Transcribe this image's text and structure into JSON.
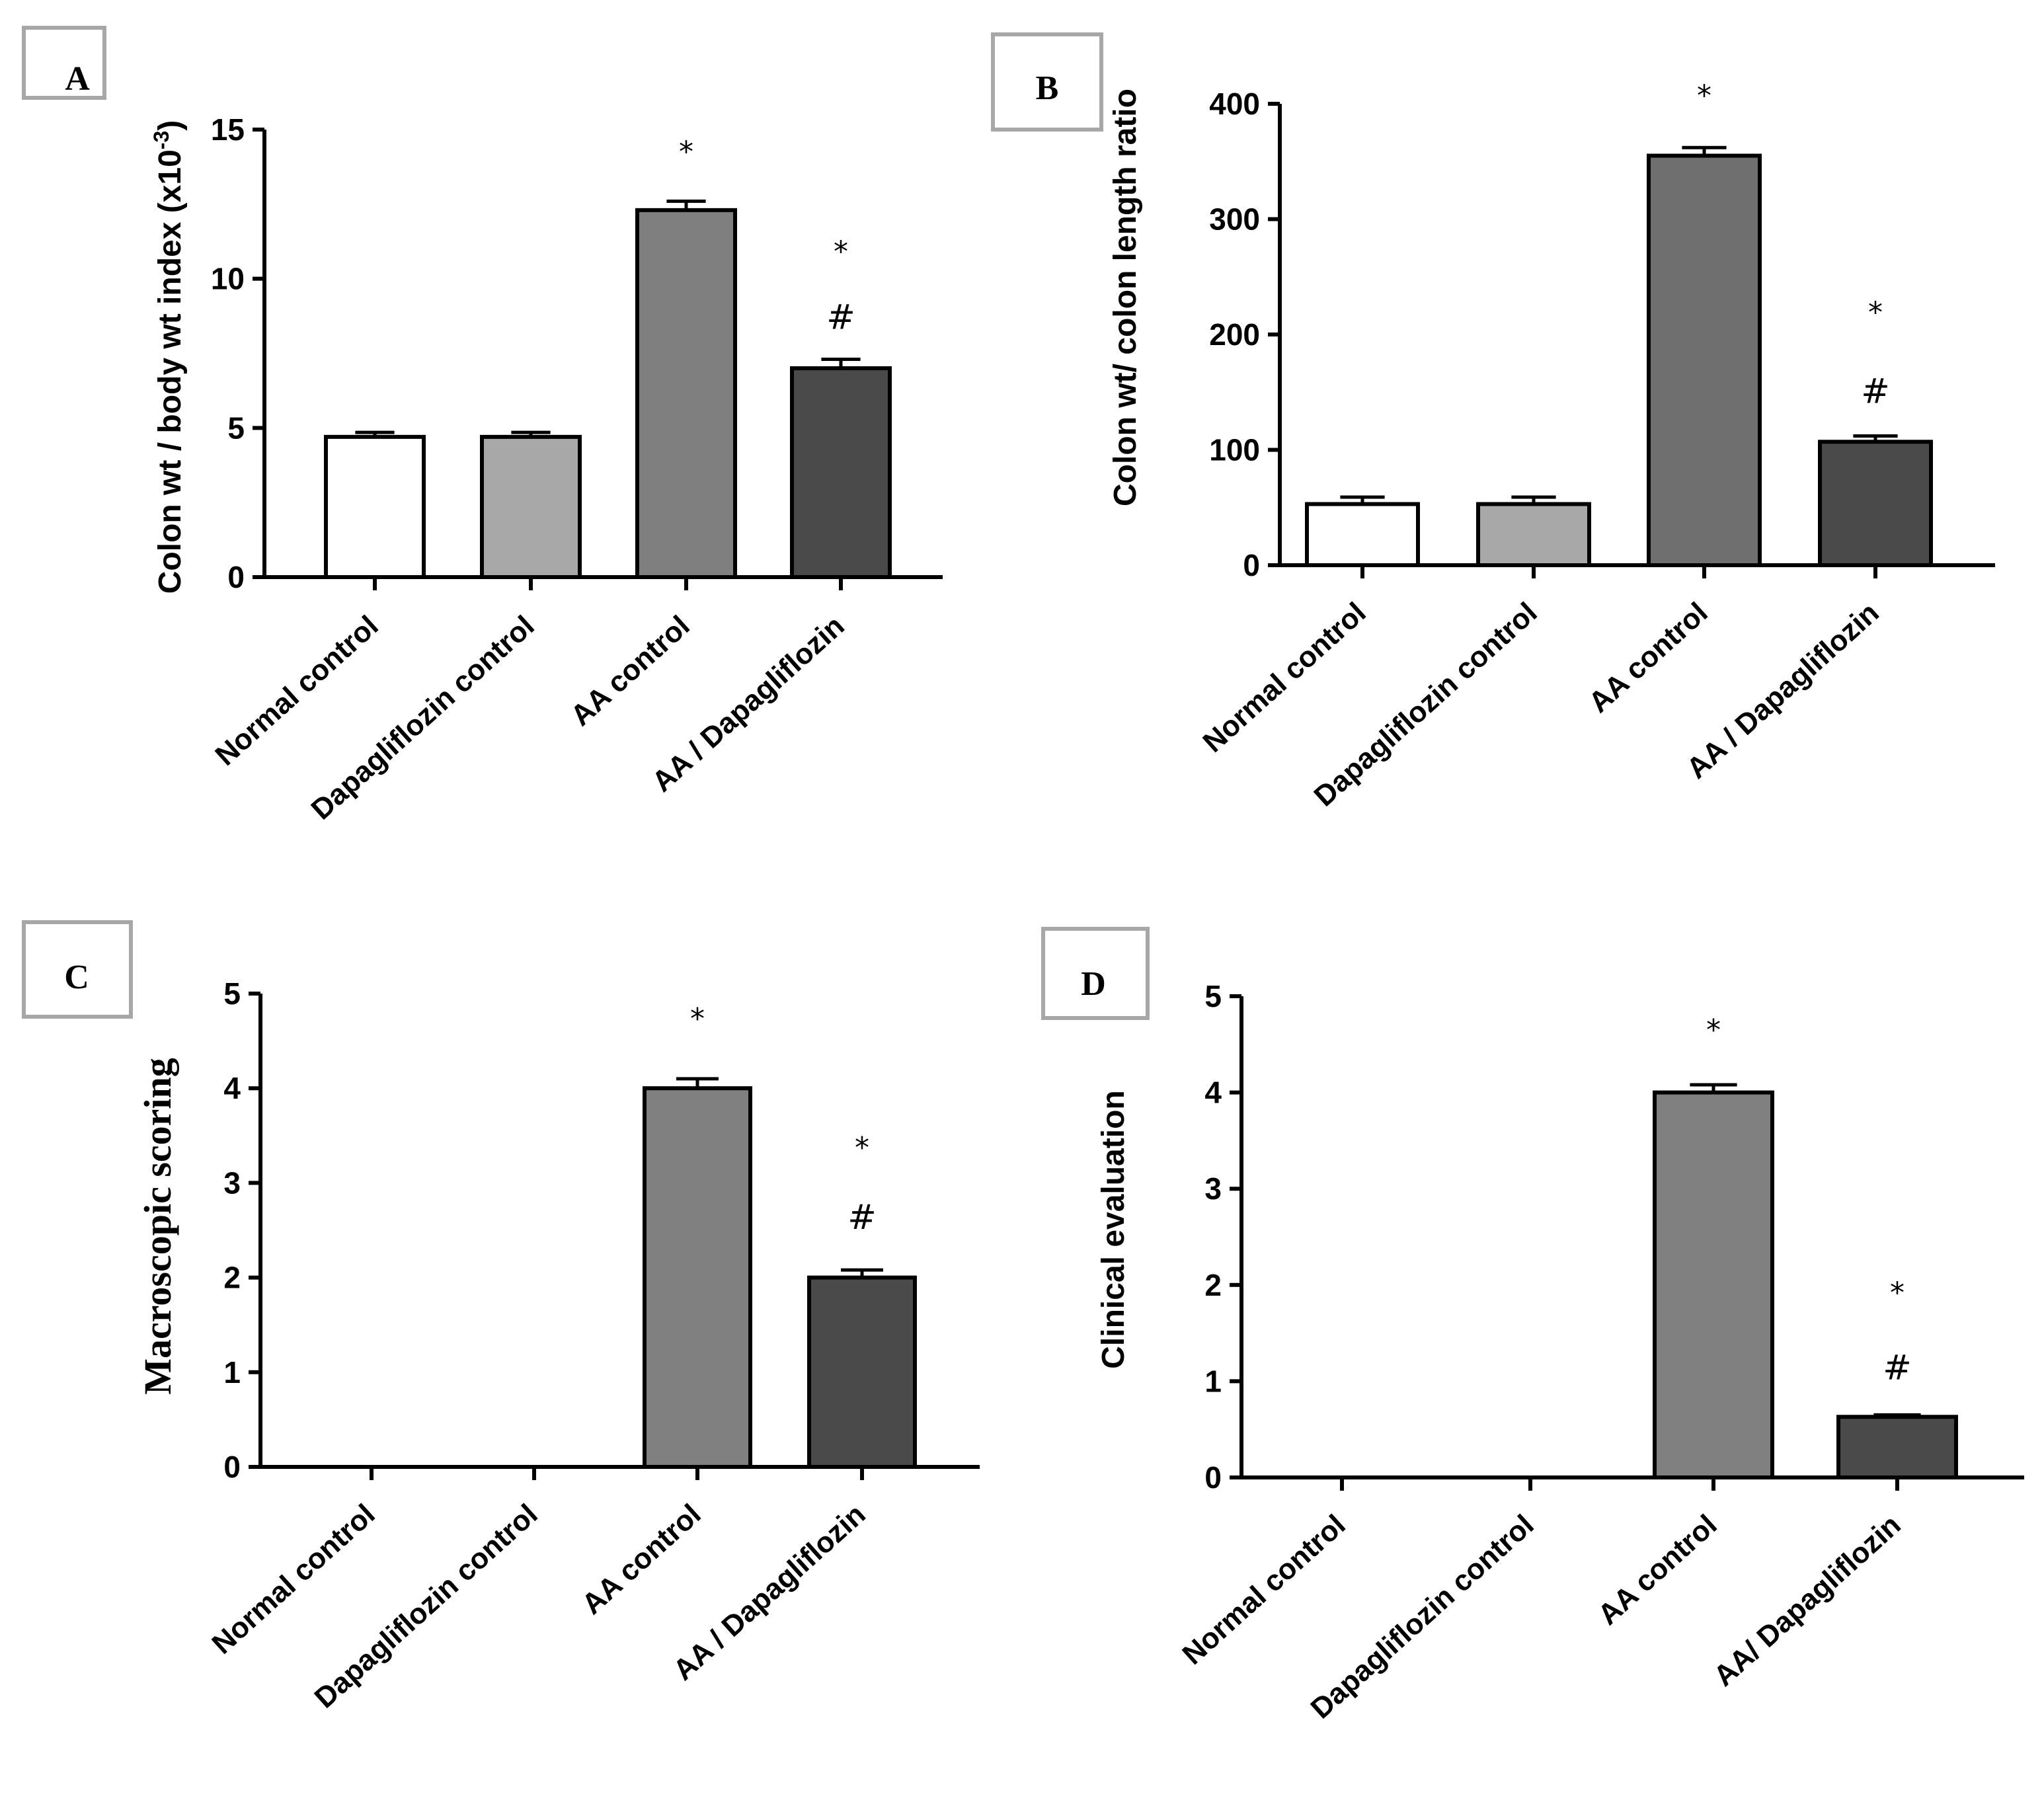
{
  "chart_data": [
    {
      "panel": "A",
      "type": "bar",
      "categories": [
        "Normal control",
        "Dapagliflozin control",
        "AA control",
        "AA / Dapagliflozin"
      ],
      "values": [
        4.7,
        4.7,
        12.3,
        7.0
      ],
      "errors": [
        0.15,
        0.15,
        0.3,
        0.3
      ],
      "annotations": [
        [],
        [],
        [
          "*"
        ],
        [
          "*",
          "#"
        ]
      ],
      "ylabel": "Colon wt / body wt index (x10",
      "ylabel_sup": "-3",
      "ylabel_close": ")",
      "ylim": [
        0,
        15
      ],
      "yticks": [
        0,
        5,
        10,
        15
      ],
      "colors": [
        "#ffffff",
        "#a8a8a8",
        "#7f7f7f",
        "#4a4a4a"
      ]
    },
    {
      "panel": "B",
      "type": "bar",
      "categories": [
        "Normal control",
        "Dapagliflozin control",
        "AA control",
        "AA / Dapagliflozin"
      ],
      "values": [
        53,
        53,
        355,
        107
      ],
      "errors": [
        6,
        6,
        7,
        5
      ],
      "annotations": [
        [],
        [],
        [
          "*"
        ],
        [
          "*",
          "#"
        ]
      ],
      "ylabel": "Colon wt/ colon length ratio",
      "ylim": [
        0,
        400
      ],
      "yticks": [
        0,
        100,
        200,
        300,
        400
      ],
      "colors": [
        "#ffffff",
        "#a8a8a8",
        "#6e6e6e",
        "#4a4a4a"
      ]
    },
    {
      "panel": "C",
      "type": "bar",
      "categories": [
        "Normal control",
        "Dapagliflozin control",
        "AA control",
        "AA / Dapagliflozin"
      ],
      "values": [
        0,
        0,
        4.0,
        2.0
      ],
      "errors": [
        0,
        0,
        0.1,
        0.08
      ],
      "annotations": [
        [],
        [],
        [
          "*"
        ],
        [
          "*",
          "#"
        ]
      ],
      "ylabel": "Macroscopic scoring",
      "ylim": [
        0,
        5
      ],
      "yticks": [
        0,
        1,
        2,
        3,
        4,
        5
      ],
      "colors": [
        "#ffffff",
        "#a8a8a8",
        "#808080",
        "#4a4a4a"
      ]
    },
    {
      "panel": "D",
      "type": "bar",
      "categories": [
        "Normal control",
        "Dapagliflozin control",
        "AA control",
        "AA/ Dapagliflozin"
      ],
      "values": [
        0,
        0,
        4.0,
        0.63
      ],
      "errors": [
        0,
        0,
        0.08,
        0.02
      ],
      "annotations": [
        [],
        [],
        [
          "*"
        ],
        [
          "*",
          "#"
        ]
      ],
      "ylabel": "Clinical evaluation",
      "ylim": [
        0,
        5
      ],
      "yticks": [
        0,
        1,
        2,
        3,
        4,
        5
      ],
      "colors": [
        "#ffffff",
        "#a8a8a8",
        "#808080",
        "#4a4a4a"
      ]
    }
  ]
}
